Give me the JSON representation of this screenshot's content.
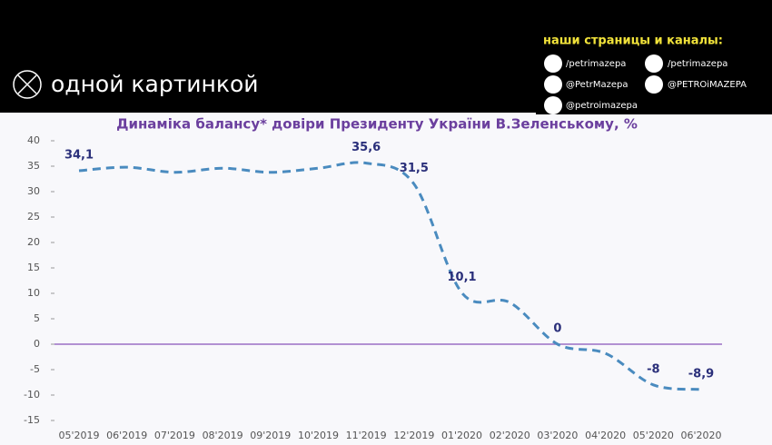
{
  "header": {
    "brand": "одной картинкой"
  },
  "social": {
    "title": "наши страницы и каналы:",
    "links": [
      "/petrimazepa",
      "/petrimazepa",
      "@PetrMazepa",
      "@PETROiMAZEPA",
      "@petroimazepa"
    ]
  },
  "chart_data": {
    "type": "line",
    "title": "Динаміка балансу* довіри Президенту України В.Зеленському, %",
    "categories": [
      "05'2019",
      "06'2019",
      "07'2019",
      "08'2019",
      "09'2019",
      "10'2019",
      "11'2019",
      "12'2019",
      "01'2020",
      "02'2020",
      "03'2020",
      "04'2020",
      "05'2020",
      "06'2020"
    ],
    "series": [
      {
        "name": null,
        "color": "#4a8bbf",
        "values": [
          34.1,
          34.8,
          33.8,
          34.6,
          33.8,
          34.6,
          35.6,
          31.5,
          10.1,
          8.2,
          0,
          -1.8,
          -8,
          -8.9
        ],
        "value_labels": [
          "34,1",
          null,
          null,
          null,
          null,
          null,
          "35,6",
          "31,5",
          "10,1",
          null,
          "0",
          null,
          "-8",
          "-8,9"
        ]
      }
    ],
    "ylim": [
      -15,
      40
    ],
    "yticks": [
      -15,
      -10,
      -5,
      0,
      5,
      10,
      15,
      20,
      25,
      30,
      35,
      40
    ],
    "grid": false
  }
}
